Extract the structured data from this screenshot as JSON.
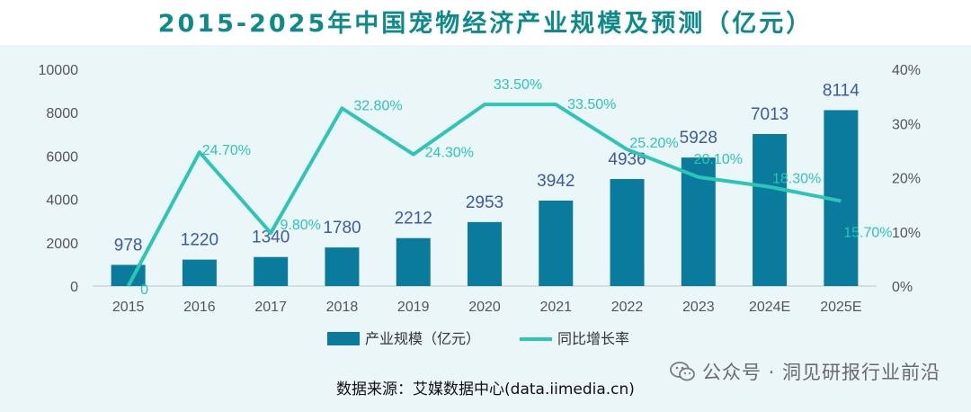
{
  "colors": {
    "title": "#0f8a8a",
    "bar": "#0a7b9d",
    "bar_label": "#3d5aa6",
    "line": "#2ec4b6",
    "line_label": "#2ec4b6",
    "background": "#eaf6f8",
    "axis_text": "#555555"
  },
  "footer": {
    "source": "数据来源：艾媒数据中心(data.iimedia.cn)",
    "watermark": "公众号 · 洞见研报行业前沿"
  },
  "chart_data": {
    "type": "bar",
    "title": "2015-2025年中国宠物经济产业规模及预测（亿元）",
    "categories": [
      "2015",
      "2016",
      "2017",
      "2018",
      "2019",
      "2020",
      "2021",
      "2022",
      "2023",
      "2024E",
      "2025E"
    ],
    "series": [
      {
        "name": "产业规模（亿元）",
        "type": "bar",
        "axis": "left",
        "values": [
          978,
          1220,
          1340,
          1780,
          2212,
          2953,
          3942,
          4936,
          5928,
          7013,
          8114
        ],
        "labels": [
          "978",
          "1220",
          "1340",
          "1780",
          "2212",
          "2953",
          "3942",
          "4936",
          "5928",
          "7013",
          "8114"
        ]
      },
      {
        "name": "同比增长率",
        "type": "line",
        "axis": "right",
        "values": [
          0,
          24.7,
          9.8,
          32.8,
          24.3,
          33.5,
          33.5,
          25.2,
          20.1,
          18.3,
          15.7
        ],
        "labels": [
          "0",
          "24.70%",
          "9.80%",
          "32.80%",
          "24.30%",
          "33.50%",
          "33.50%",
          "25.20%",
          "20.10%",
          "18.30%",
          "15.70%"
        ]
      }
    ],
    "y_left": {
      "min": 0,
      "max": 10000,
      "ticks": [
        "0",
        "2000",
        "4000",
        "6000",
        "8000",
        "10000"
      ]
    },
    "y_right": {
      "min": 0,
      "max": 40,
      "ticks": [
        "0%",
        "10%",
        "20%",
        "30%",
        "40%"
      ]
    },
    "legend_position": "bottom-center",
    "grid": false
  }
}
